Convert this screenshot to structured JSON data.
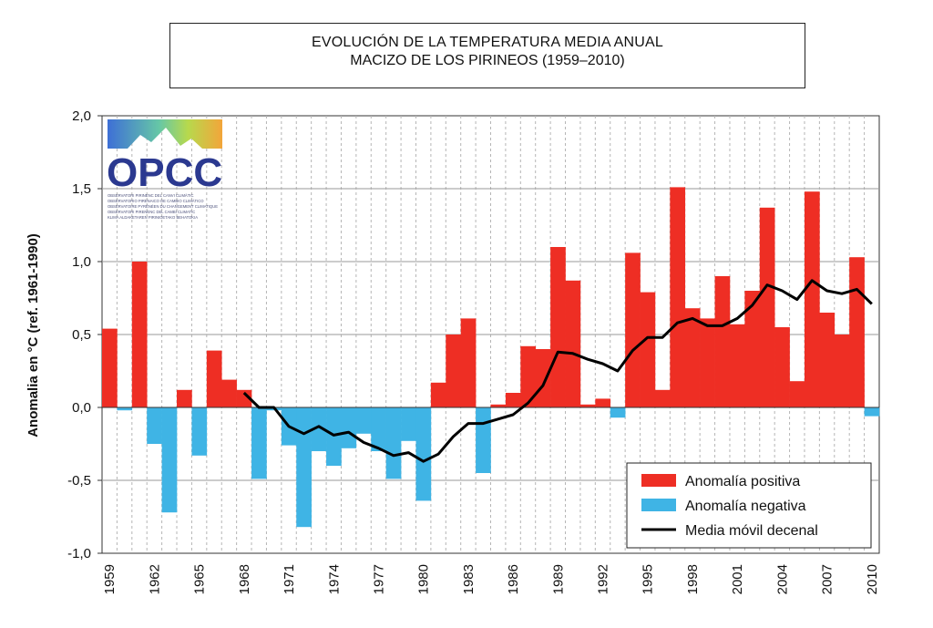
{
  "chart_data": {
    "type": "bar",
    "title": "EVOLUCIÓN DE LA TEMPERATURA MEDIA ANUAL",
    "subtitle": "MACIZO DE LOS PIRINEOS  (1959–2010)",
    "ylabel": "Anomalia en °C (ref. 1961-1990)",
    "xlabel": "",
    "ylim": [
      -1.0,
      2.0
    ],
    "yticks": [
      "2,0",
      "1,5",
      "1,0",
      "0,5",
      "0,0",
      "-0,5",
      "-1,0"
    ],
    "ytick_values": [
      2.0,
      1.5,
      1.0,
      0.5,
      0.0,
      -0.5,
      -1.0
    ],
    "xticks": [
      "1959",
      "1962",
      "1965",
      "1968",
      "1971",
      "1974",
      "1977",
      "1980",
      "1983",
      "1986",
      "1989",
      "1992",
      "1995",
      "1998",
      "2001",
      "2004",
      "2007",
      "2010"
    ],
    "grid": true,
    "legend_position": "bottom-right",
    "years": [
      1959,
      1960,
      1961,
      1962,
      1963,
      1964,
      1965,
      1966,
      1967,
      1968,
      1969,
      1970,
      1971,
      1972,
      1973,
      1974,
      1975,
      1976,
      1977,
      1978,
      1979,
      1980,
      1981,
      1982,
      1983,
      1984,
      1985,
      1986,
      1987,
      1988,
      1989,
      1990,
      1991,
      1992,
      1993,
      1994,
      1995,
      1996,
      1997,
      1998,
      1999,
      2000,
      2001,
      2002,
      2003,
      2004,
      2005,
      2006,
      2007,
      2008,
      2009,
      2010
    ],
    "anomalies": [
      0.54,
      -0.02,
      1.0,
      -0.25,
      -0.72,
      0.12,
      -0.33,
      0.39,
      0.19,
      0.12,
      -0.49,
      -0.02,
      -0.26,
      -0.82,
      -0.3,
      -0.4,
      -0.28,
      -0.18,
      -0.3,
      -0.49,
      -0.23,
      -0.64,
      0.17,
      0.5,
      0.61,
      -0.45,
      0.02,
      0.1,
      0.42,
      0.4,
      1.1,
      0.87,
      0.02,
      0.06,
      -0.07,
      1.06,
      0.79,
      0.12,
      1.51,
      0.68,
      0.61,
      0.9,
      0.57,
      0.8,
      1.37,
      0.55,
      0.18,
      1.48,
      0.65,
      0.5,
      1.03,
      -0.06
    ],
    "moving_average": {
      "years": [
        1968,
        1969,
        1970,
        1971,
        1972,
        1973,
        1974,
        1975,
        1976,
        1977,
        1978,
        1979,
        1980,
        1981,
        1982,
        1983,
        1984,
        1985,
        1986,
        1987,
        1988,
        1989,
        1990,
        1991,
        1992,
        1993,
        1994,
        1995,
        1996,
        1997,
        1998,
        1999,
        2000,
        2001,
        2002,
        2003,
        2004,
        2005,
        2006,
        2007,
        2008,
        2009,
        2010
      ],
      "values": [
        0.1,
        0.0,
        0.0,
        -0.13,
        -0.18,
        -0.13,
        -0.19,
        -0.17,
        -0.24,
        -0.28,
        -0.33,
        -0.31,
        -0.37,
        -0.32,
        -0.2,
        -0.11,
        -0.11,
        -0.08,
        -0.05,
        0.03,
        0.15,
        0.38,
        0.37,
        0.33,
        0.3,
        0.25,
        0.39,
        0.48,
        0.48,
        0.58,
        0.61,
        0.56,
        0.56,
        0.61,
        0.7,
        0.84,
        0.8,
        0.74,
        0.87,
        0.8,
        0.78,
        0.81,
        0.71
      ]
    },
    "series": [
      {
        "name": "Anomalía positiva",
        "color": "#ee2e24"
      },
      {
        "name": "Anomalía negativa",
        "color": "#3fb4e5"
      },
      {
        "name": "Media móvil decenal",
        "color": "#000000"
      }
    ]
  },
  "logo": {
    "name": "OPCC",
    "lines": [
      "OBSERVATORI PIRINENC DEL CANVI CLIMÀTIC",
      "OBSERVATORIO PIRENAICO DE CAMBIO CLIMÁTICO",
      "OBSERVATOIRE PYRÉNÉEN DU CHANGEMENT CLIMATIQUE",
      "OBSERVATORI PIRENENC DEL CAMBI CLIMATIC",
      "KLIMA ALDAKETAREN PIRINIOETAKO BEHATOKIA"
    ]
  }
}
